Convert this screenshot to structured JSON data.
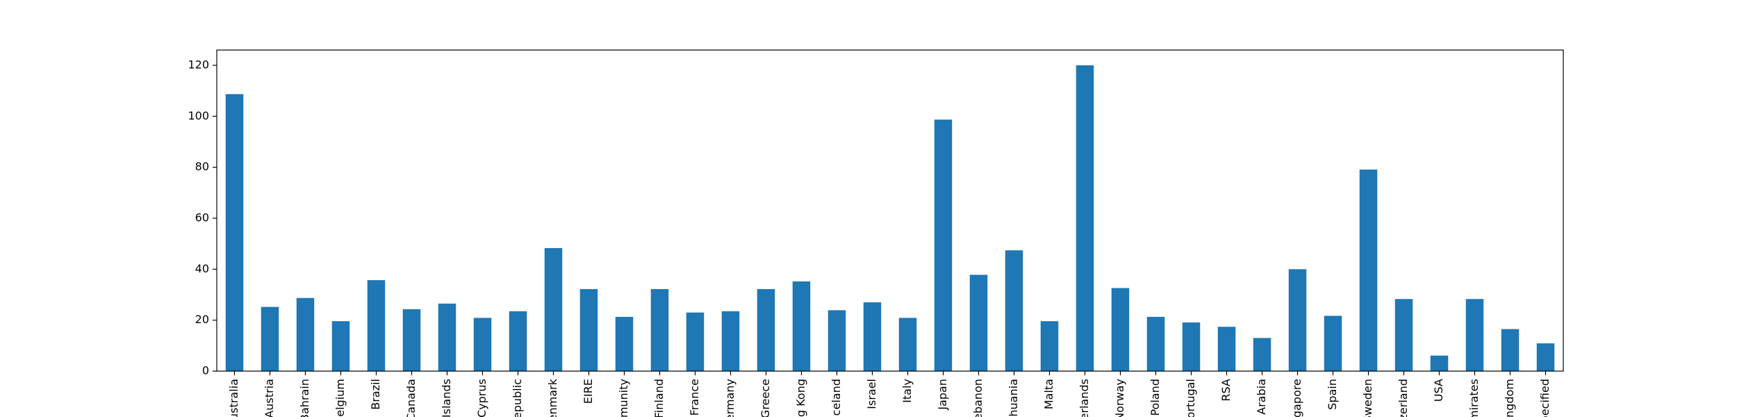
{
  "chart_data": {
    "type": "bar",
    "categories": [
      "ustralia",
      "Austria",
      "Bahrain",
      "Belgium",
      "Brazil",
      "Canada",
      "l Islands",
      "Cyprus",
      "Republic",
      "enmark",
      "EIRE",
      "mmunity",
      "Finland",
      "France",
      "ermany",
      "Greece",
      "ng Kong",
      "celand",
      "Israel",
      "Italy",
      "Japan",
      "ebanon",
      "thuania",
      "Malta",
      "erlands",
      "Norway",
      "Poland",
      "ortugal",
      "RSA",
      "i Arabia",
      "ngapore",
      "Spain",
      "Sweden",
      "zerland",
      "USA",
      "mirates",
      "Kingdom",
      "pecified"
    ],
    "values": [
      108.7,
      25.2,
      28.7,
      19.6,
      35.7,
      24.3,
      26.5,
      20.9,
      23.5,
      48.3,
      32.2,
      21.3,
      32.2,
      23.0,
      23.5,
      32.2,
      35.2,
      23.9,
      27.0,
      20.9,
      98.7,
      37.8,
      47.4,
      19.6,
      120.0,
      32.6,
      21.3,
      19.1,
      17.4,
      13.0,
      40.0,
      21.7,
      79.1,
      28.3,
      6.1,
      28.3,
      16.5,
      10.9
    ],
    "color": "#1f77b4",
    "ylim": [
      0,
      126
    ],
    "yticks": [
      0,
      20,
      40,
      60,
      80,
      100,
      120
    ]
  }
}
